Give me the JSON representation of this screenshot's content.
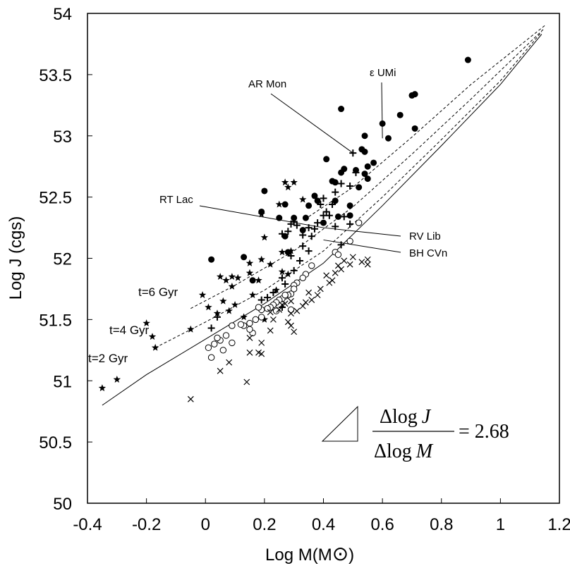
{
  "chart_data": {
    "type": "scatter",
    "title": "",
    "xlabel": "Log M(M",
    "xlabel_symbol": "⊙",
    "ylabel": "Log J (cgs)",
    "xlim": [
      -0.4,
      1.2
    ],
    "ylim": [
      50,
      54
    ],
    "xticks": [
      -0.4,
      -0.2,
      0,
      0.2,
      0.4,
      0.6,
      0.8,
      1,
      1.2
    ],
    "xtick_labels": [
      "-0.4",
      "-0.2",
      "0",
      "0.2",
      "0.4",
      "0.6",
      "0.8",
      "1",
      "1.2"
    ],
    "yticks": [
      50,
      50.5,
      51,
      51.5,
      52,
      52.5,
      53,
      53.5,
      54
    ],
    "ytick_labels": [
      "50",
      "50.5",
      "51",
      "51.5",
      "52",
      "52.5",
      "53",
      "53.5",
      "54"
    ],
    "grid": false,
    "series": [
      {
        "name": "filled circles",
        "marker": "filled-circle",
        "points": [
          [
            0.89,
            53.62
          ],
          [
            0.71,
            53.34
          ],
          [
            0.7,
            53.33
          ],
          [
            0.71,
            53.06
          ],
          [
            0.66,
            53.17
          ],
          [
            0.62,
            52.98
          ],
          [
            0.6,
            53.1
          ],
          [
            0.46,
            53.22
          ],
          [
            0.57,
            52.78
          ],
          [
            0.53,
            52.89
          ],
          [
            0.54,
            52.87
          ],
          [
            0.54,
            53.0
          ],
          [
            0.55,
            52.75
          ],
          [
            0.51,
            52.72
          ],
          [
            0.54,
            52.69
          ],
          [
            0.55,
            52.65
          ],
          [
            0.52,
            52.58
          ],
          [
            0.47,
            52.73
          ],
          [
            0.46,
            52.7
          ],
          [
            0.41,
            52.81
          ],
          [
            0.44,
            52.62
          ],
          [
            0.37,
            52.51
          ],
          [
            0.35,
            52.43
          ],
          [
            0.38,
            52.47
          ],
          [
            0.34,
            52.33
          ],
          [
            0.3,
            52.33
          ],
          [
            0.27,
            52.44
          ],
          [
            0.25,
            52.33
          ],
          [
            0.2,
            52.55
          ],
          [
            0.19,
            52.38
          ],
          [
            0.44,
            52.47
          ],
          [
            0.49,
            52.43
          ],
          [
            0.49,
            52.35
          ],
          [
            0.4,
            52.29
          ],
          [
            0.45,
            52.34
          ],
          [
            0.28,
            52.05
          ],
          [
            0.13,
            52.01
          ],
          [
            0.02,
            51.99
          ],
          [
            0.16,
            51.82
          ],
          [
            0.27,
            52.18
          ],
          [
            0.43,
            52.63
          ],
          [
            0.33,
            52.23
          ]
        ]
      },
      {
        "name": "stars",
        "marker": "star",
        "points": [
          [
            -0.35,
            50.94
          ],
          [
            -0.3,
            51.01
          ],
          [
            -0.17,
            51.27
          ],
          [
            -0.18,
            51.36
          ],
          [
            -0.2,
            51.47
          ],
          [
            -0.05,
            51.42
          ],
          [
            -0.01,
            51.7
          ],
          [
            0.01,
            51.6
          ],
          [
            0.04,
            51.55
          ],
          [
            0.06,
            51.65
          ],
          [
            0.07,
            51.82
          ],
          [
            0.09,
            51.85
          ],
          [
            0.11,
            51.84
          ],
          [
            0.08,
            51.57
          ],
          [
            0.1,
            51.62
          ],
          [
            0.13,
            51.52
          ],
          [
            0.15,
            51.88
          ],
          [
            0.15,
            51.96
          ],
          [
            0.19,
            51.99
          ],
          [
            0.18,
            51.82
          ],
          [
            0.2,
            52.17
          ],
          [
            0.19,
            52.36
          ],
          [
            0.2,
            51.5
          ],
          [
            0.22,
            51.6
          ],
          [
            0.24,
            51.74
          ],
          [
            0.26,
            51.89
          ],
          [
            0.28,
            51.87
          ],
          [
            0.27,
            52.62
          ],
          [
            0.3,
            52.62
          ],
          [
            0.28,
            52.58
          ],
          [
            0.25,
            52.44
          ],
          [
            0.33,
            52.48
          ],
          [
            0.22,
            51.95
          ],
          [
            0.26,
            52.05
          ],
          [
            0.29,
            52.06
          ],
          [
            0.09,
            51.77
          ],
          [
            0.05,
            51.85
          ],
          [
            0.16,
            51.7
          ]
        ]
      },
      {
        "name": "plus",
        "marker": "plus",
        "points": [
          [
            0.5,
            52.86
          ],
          [
            0.51,
            52.7
          ],
          [
            0.49,
            52.59
          ],
          [
            0.46,
            52.61
          ],
          [
            0.44,
            52.54
          ],
          [
            0.4,
            52.49
          ],
          [
            0.39,
            52.44
          ],
          [
            0.43,
            52.44
          ],
          [
            0.41,
            52.38
          ],
          [
            0.42,
            52.35
          ],
          [
            0.4,
            52.35
          ],
          [
            0.38,
            52.29
          ],
          [
            0.37,
            52.24
          ],
          [
            0.35,
            52.25
          ],
          [
            0.33,
            52.19
          ],
          [
            0.31,
            52.27
          ],
          [
            0.3,
            52.3
          ],
          [
            0.29,
            52.28
          ],
          [
            0.28,
            52.22
          ],
          [
            0.26,
            52.2
          ],
          [
            0.33,
            52.1
          ],
          [
            0.35,
            52.06
          ],
          [
            0.32,
            51.98
          ],
          [
            0.3,
            51.9
          ],
          [
            0.26,
            51.84
          ],
          [
            0.23,
            51.72
          ],
          [
            0.21,
            51.68
          ],
          [
            0.19,
            51.66
          ],
          [
            0.26,
            51.6
          ],
          [
            0.04,
            51.52
          ],
          [
            0.02,
            51.43
          ],
          [
            0.47,
            52.34
          ],
          [
            0.49,
            52.28
          ],
          [
            0.44,
            52.26
          ],
          [
            0.46,
            52.11
          ],
          [
            0.36,
            52.18
          ],
          [
            0.29,
            52.02
          ],
          [
            0.27,
            51.79
          ]
        ]
      },
      {
        "name": "open circles",
        "marker": "open-circle",
        "points": [
          [
            0.52,
            52.29
          ],
          [
            0.49,
            52.14
          ],
          [
            0.44,
            52.05
          ],
          [
            0.45,
            52.03
          ],
          [
            0.36,
            51.94
          ],
          [
            0.34,
            51.87
          ],
          [
            0.33,
            51.84
          ],
          [
            0.31,
            51.8
          ],
          [
            0.3,
            51.78
          ],
          [
            0.29,
            51.71
          ],
          [
            0.28,
            51.7
          ],
          [
            0.27,
            51.69
          ],
          [
            0.26,
            51.67
          ],
          [
            0.25,
            51.66
          ],
          [
            0.24,
            51.64
          ],
          [
            0.23,
            51.62
          ],
          [
            0.22,
            51.6
          ],
          [
            0.21,
            51.59
          ],
          [
            0.19,
            51.58
          ],
          [
            0.18,
            51.6
          ],
          [
            0.24,
            51.57
          ],
          [
            0.19,
            51.52
          ],
          [
            0.17,
            51.5
          ],
          [
            0.15,
            51.47
          ],
          [
            0.13,
            51.45
          ],
          [
            0.12,
            51.46
          ],
          [
            0.09,
            51.45
          ],
          [
            0.16,
            51.39
          ],
          [
            0.15,
            51.42
          ],
          [
            0.07,
            51.37
          ],
          [
            0.05,
            51.33
          ],
          [
            0.04,
            51.35
          ],
          [
            0.03,
            51.3
          ],
          [
            0.01,
            51.27
          ],
          [
            0.06,
            51.25
          ],
          [
            0.02,
            51.19
          ],
          [
            0.09,
            51.31
          ],
          [
            0.29,
            51.58
          ],
          [
            0.27,
            51.7
          ],
          [
            0.3,
            51.75
          ]
        ]
      },
      {
        "name": "crosses",
        "marker": "cross",
        "points": [
          [
            0.55,
            51.99
          ],
          [
            0.55,
            51.95
          ],
          [
            0.53,
            51.97
          ],
          [
            0.5,
            52.01
          ],
          [
            0.49,
            51.95
          ],
          [
            0.47,
            51.98
          ],
          [
            0.46,
            51.91
          ],
          [
            0.45,
            51.94
          ],
          [
            0.44,
            51.88
          ],
          [
            0.43,
            51.82
          ],
          [
            0.41,
            51.86
          ],
          [
            0.39,
            51.75
          ],
          [
            0.38,
            51.7
          ],
          [
            0.35,
            51.72
          ],
          [
            0.34,
            51.64
          ],
          [
            0.33,
            51.61
          ],
          [
            0.31,
            51.57
          ],
          [
            0.29,
            51.55
          ],
          [
            0.27,
            51.63
          ],
          [
            0.28,
            51.48
          ],
          [
            0.29,
            51.45
          ],
          [
            0.3,
            51.4
          ],
          [
            0.22,
            51.56
          ],
          [
            0.23,
            51.5
          ],
          [
            0.19,
            51.31
          ],
          [
            0.18,
            51.23
          ],
          [
            0.15,
            51.23
          ],
          [
            0.19,
            51.22
          ],
          [
            0.15,
            51.35
          ],
          [
            0.08,
            51.15
          ],
          [
            0.14,
            50.99
          ],
          [
            0.05,
            51.08
          ],
          [
            -0.05,
            50.85
          ],
          [
            0.26,
            51.62
          ],
          [
            0.29,
            51.65
          ],
          [
            0.36,
            51.66
          ],
          [
            0.42,
            51.8
          ],
          [
            0.25,
            51.58
          ],
          [
            0.22,
            51.41
          ]
        ]
      }
    ],
    "curves": [
      {
        "name": "t=2 Gyr",
        "style": "solid",
        "points": [
          [
            -0.35,
            50.8
          ],
          [
            -0.2,
            51.05
          ],
          [
            0,
            51.34
          ],
          [
            0.2,
            51.63
          ],
          [
            0.4,
            51.96
          ],
          [
            0.6,
            52.43
          ],
          [
            0.8,
            52.92
          ],
          [
            1.0,
            53.42
          ],
          [
            1.14,
            53.83
          ]
        ]
      },
      {
        "name": "t=4 Gyr",
        "style": "dashed",
        "points": [
          [
            -0.17,
            51.27
          ],
          [
            0,
            51.48
          ],
          [
            0.2,
            51.74
          ],
          [
            0.4,
            52.06
          ],
          [
            0.6,
            52.5
          ],
          [
            0.8,
            52.97
          ],
          [
            1.0,
            53.45
          ],
          [
            1.14,
            53.85
          ]
        ]
      },
      {
        "name": "t=6 Gyr",
        "style": "dashed",
        "points": [
          [
            -0.05,
            51.59
          ],
          [
            0.1,
            51.78
          ],
          [
            0.3,
            52.06
          ],
          [
            0.5,
            52.42
          ],
          [
            0.7,
            52.85
          ],
          [
            0.9,
            53.3
          ],
          [
            1.15,
            53.88
          ]
        ]
      },
      {
        "name": "upper",
        "style": "dashed",
        "points": [
          [
            0.35,
            52.34
          ],
          [
            0.5,
            52.58
          ],
          [
            0.7,
            52.99
          ],
          [
            0.9,
            53.42
          ],
          [
            1.15,
            53.9
          ]
        ]
      }
    ],
    "annotations": [
      {
        "text": "AR Mon",
        "anchor": [
          0.5,
          52.86
        ]
      },
      {
        "text": "ε UMi",
        "anchor": [
          0.6,
          52.98
        ]
      },
      {
        "text": "RT Lac",
        "anchor": [
          0.4,
          52.25
        ]
      },
      {
        "text": "RV Lib",
        "anchor": [
          0.4,
          52.25
        ]
      },
      {
        "text": "BH CVn",
        "anchor": [
          0.4,
          52.15
        ]
      }
    ],
    "isochrone_labels": [
      "t=6 Gyr",
      "t=4 Gyr",
      "t=2 Gyr"
    ],
    "formula": {
      "numerator": "Δlog",
      "numerator_var": "J",
      "denominator": "Δlog",
      "denominator_var": "M",
      "equals": "= 2.68"
    }
  }
}
